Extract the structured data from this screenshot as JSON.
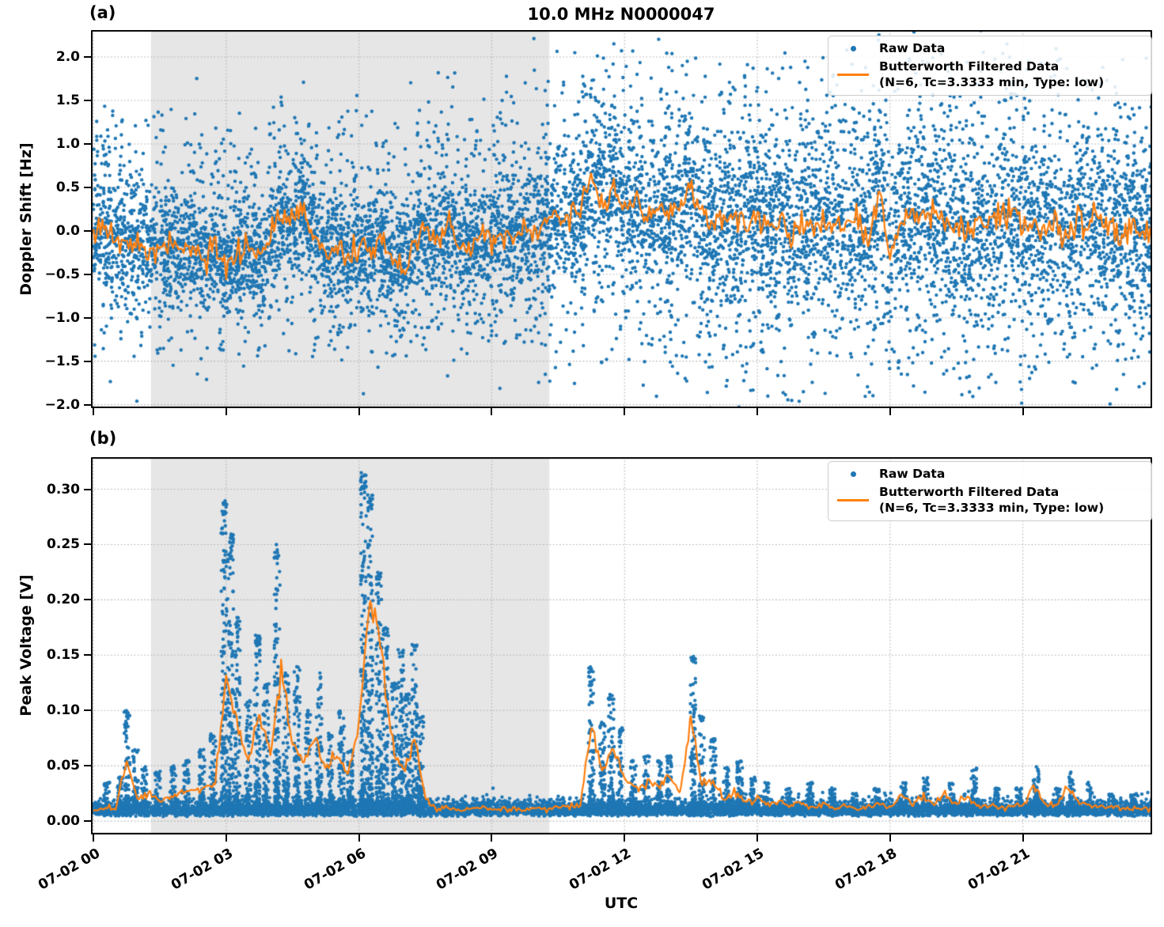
{
  "title": "10.0 MHz N0000047",
  "xlabel": "UTC",
  "colors": {
    "raw": "#1f77b4",
    "filtered": "#ff7f0e",
    "shade": "#e6e6e6",
    "grid": "#b0b0b0",
    "text": "#000000",
    "legend_border": "#cccccc"
  },
  "legend": {
    "raw_label": "Raw Data",
    "filtered_label": "Butterworth Filtered Data",
    "filtered_sublabel": "(N=6, Tc=3.3333 min, Type: low)"
  },
  "xticks": [
    {
      "hour": 0,
      "label": "07-02 00"
    },
    {
      "hour": 3,
      "label": "07-02 03"
    },
    {
      "hour": 6,
      "label": "07-02 06"
    },
    {
      "hour": 9,
      "label": "07-02 09"
    },
    {
      "hour": 12,
      "label": "07-02 12"
    },
    {
      "hour": 15,
      "label": "07-02 15"
    },
    {
      "hour": 18,
      "label": "07-02 18"
    },
    {
      "hour": 21,
      "label": "07-02 21"
    }
  ],
  "chart_data": [
    {
      "id": "a",
      "panel_label": "(a)",
      "type": "scatter",
      "ylabel": "Doppler Shift [Hz]",
      "ylim": [
        -2.04,
        2.31
      ],
      "xlim_hours": [
        -0.054,
        23.92
      ],
      "shaded_region_hours": [
        1.3,
        10.3
      ],
      "yticks": [
        {
          "v": 2.0,
          "label": "2.0"
        },
        {
          "v": 1.5,
          "label": "1.5"
        },
        {
          "v": 1.0,
          "label": "1.0"
        },
        {
          "v": 0.5,
          "label": "0.5"
        },
        {
          "v": 0.0,
          "label": "0.0"
        },
        {
          "v": -0.5,
          "label": "−0.5"
        },
        {
          "v": -1.0,
          "label": "−1.0"
        },
        {
          "v": -1.5,
          "label": "−1.5"
        },
        {
          "v": -2.0,
          "label": "−2.0"
        }
      ],
      "series": [
        {
          "name": "Raw Data",
          "type": "scatter"
        },
        {
          "name": "Butterworth Filtered Data (N=6, Tc=3.3333 min, Type: low)",
          "type": "line"
        }
      ],
      "filtered_hours_step": 0.25,
      "filtered_values": [
        -0.05,
        0.08,
        -0.12,
        -0.1,
        -0.14,
        -0.2,
        -0.22,
        -0.12,
        -0.2,
        -0.12,
        -0.28,
        -0.18,
        -0.42,
        -0.25,
        -0.18,
        -0.28,
        -0.1,
        0.22,
        0.05,
        0.28,
        -0.12,
        -0.22,
        -0.14,
        -0.28,
        -0.18,
        -0.24,
        -0.12,
        -0.3,
        -0.48,
        -0.12,
        0.02,
        -0.12,
        0.08,
        -0.14,
        -0.18,
        -0.06,
        -0.1,
        -0.02,
        -0.08,
        0.02,
        -0.02,
        0.08,
        0.22,
        0.18,
        0.25,
        0.65,
        0.3,
        0.55,
        0.22,
        0.32,
        0.1,
        0.28,
        0.18,
        0.22,
        0.52,
        0.15,
        0.08,
        0.18,
        0.12,
        0.06,
        0.18,
        0.08,
        0.14,
        -0.08,
        0.1,
        0.02,
        0.14,
        0.06,
        0.08,
        0.15,
        -0.12,
        0.52,
        -0.3,
        0.1,
        0.18,
        0.28,
        0.08,
        0.14,
        0.06,
        0.02,
        0.14,
        0.06,
        0.18,
        0.22,
        0.05,
        0.12,
        -0.02,
        0.08,
        -0.12,
        0.12,
        0.06,
        0.16,
        0.02,
        -0.06,
        0.08,
        -0.02,
        0.05
      ],
      "raw": {
        "points_per_hour": 400,
        "sigma_segments": [
          [
            0,
            7,
            0.3
          ],
          [
            7,
            10.3,
            0.33
          ],
          [
            10.3,
            13,
            0.4
          ],
          [
            13,
            24,
            0.47
          ]
        ],
        "outlier_rate": 0.05,
        "outlier_hi_segments": [
          [
            0,
            7,
            1.45
          ],
          [
            7,
            10.3,
            1.85
          ],
          [
            10.3,
            24,
            2.0
          ]
        ],
        "outlier_lo_segments": [
          [
            0,
            7,
            -1.5
          ],
          [
            7,
            10.3,
            -1.35
          ],
          [
            10.3,
            24,
            -1.9
          ]
        ]
      },
      "line_jitter": {
        "amplitude": 0.05
      },
      "seed": 7
    },
    {
      "id": "b",
      "panel_label": "(b)",
      "type": "scatter",
      "ylabel": "Peak Voltage [V]",
      "ylim": [
        -0.0121,
        0.329
      ],
      "xlim_hours": [
        -0.054,
        23.92
      ],
      "shaded_region_hours": [
        1.3,
        10.3
      ],
      "yticks": [
        {
          "v": 0.3,
          "label": "0.30"
        },
        {
          "v": 0.25,
          "label": "0.25"
        },
        {
          "v": 0.2,
          "label": "0.20"
        },
        {
          "v": 0.15,
          "label": "0.15"
        },
        {
          "v": 0.1,
          "label": "0.10"
        },
        {
          "v": 0.05,
          "label": "0.05"
        },
        {
          "v": 0.0,
          "label": "0.00"
        }
      ],
      "series": [
        {
          "name": "Raw Data",
          "type": "scatter"
        },
        {
          "name": "Butterworth Filtered Data (N=6, Tc=3.3333 min, Type: low)",
          "type": "line"
        }
      ],
      "filtered_hours_step": 0.25,
      "filtered_values": [
        0.008,
        0.012,
        0.01,
        0.055,
        0.02,
        0.025,
        0.018,
        0.022,
        0.025,
        0.03,
        0.028,
        0.035,
        0.13,
        0.09,
        0.05,
        0.1,
        0.06,
        0.135,
        0.07,
        0.055,
        0.075,
        0.045,
        0.065,
        0.04,
        0.09,
        0.21,
        0.16,
        0.07,
        0.045,
        0.075,
        0.02,
        0.01,
        0.012,
        0.01,
        0.011,
        0.012,
        0.01,
        0.012,
        0.011,
        0.01,
        0.012,
        0.011,
        0.012,
        0.013,
        0.015,
        0.085,
        0.045,
        0.065,
        0.04,
        0.03,
        0.035,
        0.03,
        0.04,
        0.025,
        0.09,
        0.035,
        0.035,
        0.02,
        0.025,
        0.018,
        0.02,
        0.015,
        0.018,
        0.014,
        0.016,
        0.013,
        0.015,
        0.012,
        0.014,
        0.012,
        0.013,
        0.015,
        0.012,
        0.025,
        0.015,
        0.022,
        0.014,
        0.025,
        0.015,
        0.022,
        0.013,
        0.015,
        0.012,
        0.014,
        0.012,
        0.032,
        0.014,
        0.013,
        0.03,
        0.018,
        0.014,
        0.012,
        0.013,
        0.011,
        0.012,
        0.011,
        0.012
      ],
      "raw": {
        "points_per_hour": 300,
        "baseline": 0.006,
        "baseline_sigma": 0.006,
        "peaks": [
          [
            0.3,
            0.035
          ],
          [
            0.6,
            0.04
          ],
          [
            0.76,
            0.1
          ],
          [
            0.95,
            0.065
          ],
          [
            1.15,
            0.05
          ],
          [
            1.45,
            0.045
          ],
          [
            1.8,
            0.05
          ],
          [
            2.1,
            0.055
          ],
          [
            2.45,
            0.065
          ],
          [
            2.7,
            0.08
          ],
          [
            2.95,
            0.29
          ],
          [
            3.1,
            0.26
          ],
          [
            3.25,
            0.185
          ],
          [
            3.5,
            0.11
          ],
          [
            3.7,
            0.17
          ],
          [
            3.9,
            0.125
          ],
          [
            4.15,
            0.25
          ],
          [
            4.35,
            0.135
          ],
          [
            4.6,
            0.14
          ],
          [
            4.85,
            0.1
          ],
          [
            5.1,
            0.135
          ],
          [
            5.35,
            0.08
          ],
          [
            5.6,
            0.1
          ],
          [
            5.8,
            0.065
          ],
          [
            6.1,
            0.315
          ],
          [
            6.25,
            0.295
          ],
          [
            6.45,
            0.225
          ],
          [
            6.6,
            0.175
          ],
          [
            6.8,
            0.125
          ],
          [
            6.95,
            0.155
          ],
          [
            7.1,
            0.115
          ],
          [
            7.25,
            0.16
          ],
          [
            7.4,
            0.095
          ],
          [
            11.25,
            0.14
          ],
          [
            11.5,
            0.09
          ],
          [
            11.7,
            0.115
          ],
          [
            11.9,
            0.085
          ],
          [
            12.2,
            0.055
          ],
          [
            12.5,
            0.06
          ],
          [
            12.8,
            0.055
          ],
          [
            13.0,
            0.06
          ],
          [
            13.55,
            0.15
          ],
          [
            13.75,
            0.095
          ],
          [
            14.0,
            0.075
          ],
          [
            14.3,
            0.05
          ],
          [
            14.6,
            0.055
          ],
          [
            14.9,
            0.04
          ],
          [
            15.2,
            0.035
          ],
          [
            15.7,
            0.03
          ],
          [
            16.2,
            0.035
          ],
          [
            16.7,
            0.03
          ],
          [
            17.2,
            0.025
          ],
          [
            17.7,
            0.03
          ],
          [
            18.3,
            0.035
          ],
          [
            18.8,
            0.04
          ],
          [
            19.4,
            0.035
          ],
          [
            19.9,
            0.048
          ],
          [
            20.4,
            0.03
          ],
          [
            20.9,
            0.03
          ],
          [
            21.3,
            0.052
          ],
          [
            21.8,
            0.03
          ],
          [
            22.1,
            0.045
          ],
          [
            22.5,
            0.035
          ],
          [
            23.0,
            0.025
          ],
          [
            23.5,
            0.025
          ]
        ]
      },
      "line_jitter": {
        "amplitude": 0.003,
        "min_value": 0.004
      },
      "seed": 11
    }
  ]
}
